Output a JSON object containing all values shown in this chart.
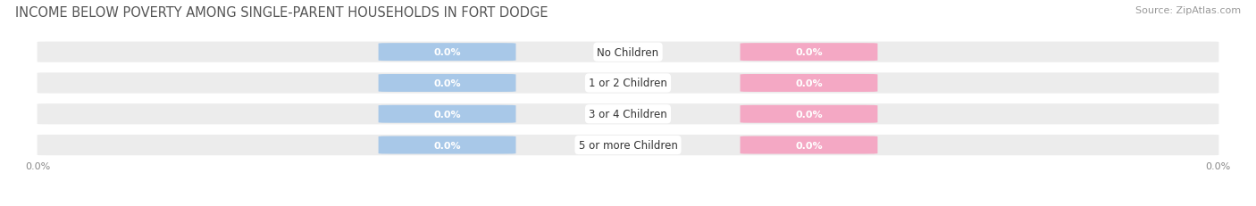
{
  "title": "INCOME BELOW POVERTY AMONG SINGLE-PARENT HOUSEHOLDS IN FORT DODGE",
  "source": "Source: ZipAtlas.com",
  "categories": [
    "No Children",
    "1 or 2 Children",
    "3 or 4 Children",
    "5 or more Children"
  ],
  "single_father_values": [
    0.0,
    0.0,
    0.0,
    0.0
  ],
  "single_mother_values": [
    0.0,
    0.0,
    0.0,
    0.0
  ],
  "father_color": "#a8c8e8",
  "mother_color": "#f4a8c4",
  "row_bg_color": "#ececec",
  "title_fontsize": 10.5,
  "source_fontsize": 8,
  "value_fontsize": 8,
  "category_fontsize": 8.5,
  "legend_fontsize": 8.5,
  "axis_label_left": "0.0%",
  "axis_label_right": "0.0%",
  "background_color": "#ffffff"
}
